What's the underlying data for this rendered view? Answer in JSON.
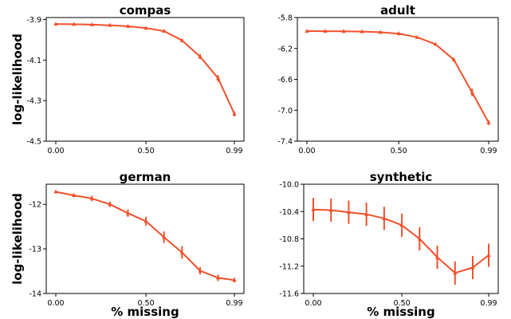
{
  "chart_data": [
    {
      "type": "line",
      "title": "compas",
      "ylabel": "log-likelihood",
      "xlabel": "",
      "x": [
        0.0,
        0.1,
        0.2,
        0.3,
        0.4,
        0.5,
        0.6,
        0.7,
        0.8,
        0.9,
        0.99
      ],
      "x_ticks": [
        0.0,
        0.5,
        0.99
      ],
      "x_tick_labels": [
        "0.00",
        "0.50",
        "0.99"
      ],
      "y_ticks": [
        -3.9,
        -4.1,
        -4.3,
        -4.5
      ],
      "y_tick_labels": [
        "-3.9",
        "-4.1",
        "-4.3",
        "-4.5"
      ],
      "ylim": [
        -4.5,
        -3.89
      ],
      "series": [
        {
          "values": [
            -3.922,
            -3.923,
            -3.925,
            -3.928,
            -3.933,
            -3.942,
            -3.957,
            -4.003,
            -4.083,
            -4.19,
            -4.365
          ],
          "errors": [
            0.004,
            0.004,
            0.004,
            0.004,
            0.004,
            0.005,
            0.006,
            0.008,
            0.012,
            0.016,
            0.012
          ]
        }
      ],
      "color": "#f0512b"
    },
    {
      "type": "line",
      "title": "adult",
      "ylabel": "",
      "xlabel": "",
      "x": [
        0.0,
        0.1,
        0.2,
        0.3,
        0.4,
        0.5,
        0.6,
        0.7,
        0.8,
        0.9,
        0.99
      ],
      "x_ticks": [
        0.0,
        0.5,
        0.99
      ],
      "x_tick_labels": [
        "0.00",
        "0.50",
        "0.99"
      ],
      "y_ticks": [
        -5.8,
        -6.2,
        -6.6,
        -7.0,
        -7.4
      ],
      "y_tick_labels": [
        "-5.8",
        "-6.2",
        "-6.6",
        "-7.0",
        "-7.4"
      ],
      "ylim": [
        -7.4,
        -5.8
      ],
      "series": [
        {
          "values": [
            -5.975,
            -5.976,
            -5.978,
            -5.982,
            -5.99,
            -6.008,
            -6.055,
            -6.145,
            -6.345,
            -6.77,
            -7.16
          ],
          "errors": [
            0.006,
            0.006,
            0.006,
            0.007,
            0.008,
            0.01,
            0.012,
            0.015,
            0.025,
            0.05,
            0.03
          ]
        }
      ],
      "color": "#f0512b"
    },
    {
      "type": "line",
      "title": "german",
      "ylabel": "log-likelihood",
      "xlabel": "% missing",
      "x": [
        0.0,
        0.1,
        0.2,
        0.3,
        0.4,
        0.5,
        0.6,
        0.7,
        0.8,
        0.9,
        0.99
      ],
      "x_ticks": [
        0.0,
        0.5,
        0.99
      ],
      "x_tick_labels": [
        "0.00",
        "0.50",
        "0.99"
      ],
      "y_ticks": [
        -12,
        -13,
        -14
      ],
      "y_tick_labels": [
        "-12",
        "-13",
        "-14"
      ],
      "ylim": [
        -14.0,
        -11.55
      ],
      "series": [
        {
          "values": [
            -11.72,
            -11.8,
            -11.87,
            -12.0,
            -12.2,
            -12.38,
            -12.74,
            -13.08,
            -13.49,
            -13.65,
            -13.7
          ],
          "errors": [
            0.03,
            0.04,
            0.06,
            0.06,
            0.08,
            0.1,
            0.13,
            0.14,
            0.08,
            0.07,
            0.05
          ]
        }
      ],
      "color": "#f0512b"
    },
    {
      "type": "line",
      "title": "synthetic",
      "ylabel": "",
      "xlabel": "% missing",
      "x": [
        0.0,
        0.1,
        0.2,
        0.3,
        0.4,
        0.5,
        0.6,
        0.7,
        0.8,
        0.9,
        0.99
      ],
      "x_ticks": [
        0.0,
        0.5,
        0.99
      ],
      "x_tick_labels": [
        "0.00",
        "0.50",
        "0.99"
      ],
      "y_ticks": [
        -10.0,
        -10.4,
        -10.8,
        -11.2,
        -11.6
      ],
      "y_tick_labels": [
        "-10.0",
        "-10.4",
        "-10.8",
        "-11.2",
        "-11.6"
      ],
      "ylim": [
        -11.6,
        -10.0
      ],
      "series": [
        {
          "values": [
            -10.37,
            -10.38,
            -10.41,
            -10.44,
            -10.5,
            -10.6,
            -10.8,
            -11.07,
            -11.3,
            -11.22,
            -11.04
          ],
          "errors": [
            0.17,
            0.17,
            0.17,
            0.17,
            0.17,
            0.17,
            0.17,
            0.17,
            0.17,
            0.17,
            0.17
          ]
        }
      ],
      "color": "#f0512b"
    }
  ]
}
